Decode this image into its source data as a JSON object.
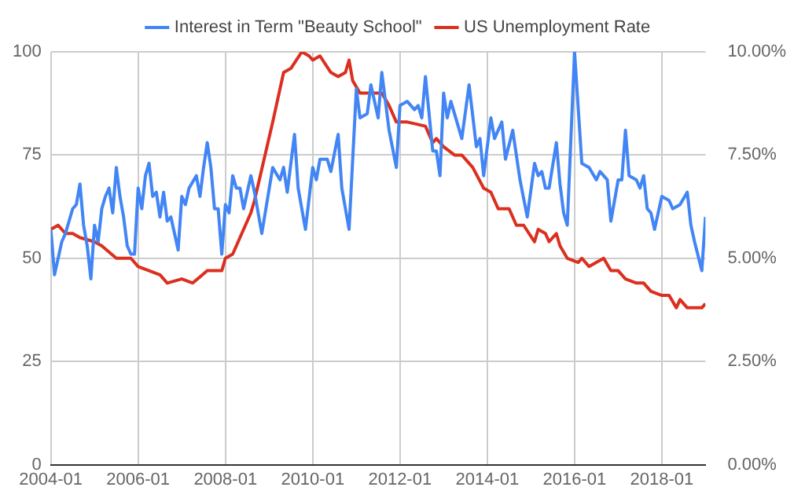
{
  "chart_data": {
    "type": "line",
    "xlim": [
      "2004-01",
      "2019-01"
    ],
    "xticks": [
      "2004-01",
      "2006-01",
      "2008-01",
      "2010-01",
      "2012-01",
      "2014-01",
      "2016-01",
      "2018-01"
    ],
    "ylim": [
      0,
      100
    ],
    "yticks": [
      0,
      25,
      50,
      75,
      100
    ],
    "y2lim": [
      0,
      10
    ],
    "y2ticks": [
      {
        "value": 0,
        "label": "0.00%"
      },
      {
        "value": 2.5,
        "label": "2.50%"
      },
      {
        "value": 5,
        "label": "5.00%"
      },
      {
        "value": 7.5,
        "label": "7.50%"
      },
      {
        "value": 10,
        "label": "10.00%"
      }
    ],
    "grid": true,
    "legend": "top",
    "marker": "none",
    "line_style": "solid",
    "series": [
      {
        "name": "Interest in Term \"Beauty School\"",
        "color": "#4285f4",
        "x": [
          "2004-01",
          "2004-02",
          "2004-04",
          "2004-05",
          "2004-07",
          "2004-08",
          "2004-09",
          "2004-10",
          "2004-11",
          "2004-12",
          "2005-01",
          "2005-02",
          "2005-03",
          "2005-04",
          "2005-05",
          "2005-06",
          "2005-07",
          "2005-08",
          "2005-09",
          "2005-10",
          "2005-11",
          "2005-12",
          "2006-01",
          "2006-02",
          "2006-03",
          "2006-04",
          "2006-05",
          "2006-06",
          "2006-07",
          "2006-08",
          "2006-09",
          "2006-10",
          "2006-11",
          "2006-12",
          "2007-01",
          "2007-02",
          "2007-03",
          "2007-05",
          "2007-06",
          "2007-07",
          "2007-08",
          "2007-09",
          "2007-10",
          "2007-11",
          "2007-12",
          "2008-01",
          "2008-02",
          "2008-03",
          "2008-04",
          "2008-05",
          "2008-06",
          "2008-08",
          "2008-09",
          "2008-10",
          "2008-11",
          "2009-02",
          "2009-04",
          "2009-05",
          "2009-06",
          "2009-08",
          "2009-09",
          "2009-11",
          "2010-01",
          "2010-02",
          "2010-03",
          "2010-05",
          "2010-06",
          "2010-08",
          "2010-09",
          "2010-11",
          "2011-01",
          "2011-02",
          "2011-04",
          "2011-05",
          "2011-07",
          "2011-08",
          "2011-10",
          "2011-12",
          "2012-01",
          "2012-03",
          "2012-05",
          "2012-06",
          "2012-07",
          "2012-08",
          "2012-10",
          "2012-11",
          "2012-12",
          "2013-01",
          "2013-02",
          "2013-03",
          "2013-04",
          "2013-06",
          "2013-08",
          "2013-10",
          "2013-11",
          "2013-12",
          "2014-02",
          "2014-03",
          "2014-05",
          "2014-06",
          "2014-08",
          "2014-10",
          "2014-12",
          "2015-02",
          "2015-03",
          "2015-04",
          "2015-05",
          "2015-06",
          "2015-08",
          "2015-09",
          "2015-10",
          "2015-11",
          "2016-01",
          "2016-03",
          "2016-05",
          "2016-07",
          "2016-08",
          "2016-10",
          "2016-11",
          "2017-01",
          "2017-02",
          "2017-03",
          "2017-04",
          "2017-06",
          "2017-07",
          "2017-08",
          "2017-09",
          "2017-10",
          "2017-11",
          "2018-01",
          "2018-03",
          "2018-04",
          "2018-06",
          "2018-08",
          "2018-09",
          "2018-10",
          "2018-12",
          "2019-01"
        ],
        "values": [
          57,
          46,
          54,
          56,
          62,
          63,
          68,
          58,
          53,
          45,
          58,
          54,
          62,
          65,
          67,
          61,
          72,
          65,
          60,
          53,
          51,
          51,
          67,
          62,
          70,
          73,
          65,
          66,
          60,
          66,
          59,
          60,
          56,
          52,
          65,
          63,
          67,
          70,
          65,
          72,
          78,
          72,
          62,
          62,
          51,
          63,
          61,
          70,
          67,
          67,
          62,
          70,
          66,
          61,
          56,
          72,
          69,
          72,
          66,
          80,
          67,
          57,
          72,
          69,
          74,
          74,
          71,
          80,
          67,
          57,
          91,
          84,
          85,
          92,
          84,
          95,
          81,
          72,
          87,
          88,
          86,
          87,
          84,
          94,
          76,
          76,
          70,
          90,
          84,
          88,
          85,
          79,
          92,
          77,
          79,
          70,
          84,
          79,
          83,
          74,
          81,
          69,
          60,
          73,
          70,
          71,
          67,
          67,
          78,
          68,
          61,
          58,
          100,
          73,
          72,
          69,
          71,
          69,
          59,
          69,
          69,
          81,
          70,
          69,
          67,
          70,
          62,
          61,
          57,
          65,
          64,
          62,
          63,
          66,
          58,
          54,
          47,
          60
        ]
      },
      {
        "name": "US Unemployment Rate",
        "color": "#db2f1f",
        "axis": "y2",
        "x": [
          "2004-01",
          "2004-03",
          "2004-05",
          "2004-07",
          "2004-09",
          "2005-01",
          "2005-03",
          "2005-07",
          "2005-09",
          "2005-11",
          "2006-01",
          "2006-04",
          "2006-07",
          "2006-09",
          "2007-01",
          "2007-04",
          "2007-08",
          "2007-12",
          "2008-01",
          "2008-03",
          "2008-05",
          "2008-08",
          "2008-09",
          "2009-02",
          "2009-05",
          "2009-07",
          "2009-10",
          "2009-12",
          "2010-01",
          "2010-03",
          "2010-06",
          "2010-08",
          "2010-10",
          "2010-11",
          "2010-12",
          "2011-02",
          "2011-04",
          "2011-08",
          "2011-10",
          "2011-12",
          "2012-03",
          "2012-08",
          "2012-10",
          "2012-11",
          "2013-01",
          "2013-04",
          "2013-06",
          "2013-09",
          "2013-12",
          "2014-02",
          "2014-04",
          "2014-07",
          "2014-09",
          "2014-11",
          "2015-02",
          "2015-03",
          "2015-05",
          "2015-06",
          "2015-08",
          "2015-09",
          "2015-11",
          "2016-02",
          "2016-03",
          "2016-05",
          "2016-07",
          "2016-09",
          "2016-11",
          "2017-01",
          "2017-03",
          "2017-06",
          "2017-08",
          "2017-10",
          "2018-01",
          "2018-03",
          "2018-05",
          "2018-06",
          "2018-08",
          "2018-10",
          "2018-12",
          "2019-01"
        ],
        "values": [
          5.7,
          5.8,
          5.6,
          5.6,
          5.5,
          5.4,
          5.3,
          5.0,
          5.0,
          5.0,
          4.8,
          4.7,
          4.6,
          4.4,
          4.5,
          4.4,
          4.7,
          4.7,
          5.0,
          5.1,
          5.5,
          6.1,
          6.4,
          8.3,
          9.5,
          9.6,
          10.0,
          9.9,
          9.8,
          9.9,
          9.5,
          9.4,
          9.5,
          9.8,
          9.3,
          9.0,
          9.0,
          9.0,
          8.7,
          8.3,
          8.3,
          8.2,
          7.8,
          7.9,
          7.7,
          7.5,
          7.5,
          7.2,
          6.7,
          6.6,
          6.2,
          6.2,
          5.8,
          5.8,
          5.4,
          5.7,
          5.6,
          5.4,
          5.6,
          5.3,
          5.0,
          4.9,
          5.0,
          4.8,
          4.9,
          5.0,
          4.7,
          4.7,
          4.5,
          4.4,
          4.4,
          4.2,
          4.1,
          4.1,
          3.8,
          4.0,
          3.8,
          3.8,
          3.8,
          3.9
        ]
      }
    ]
  }
}
